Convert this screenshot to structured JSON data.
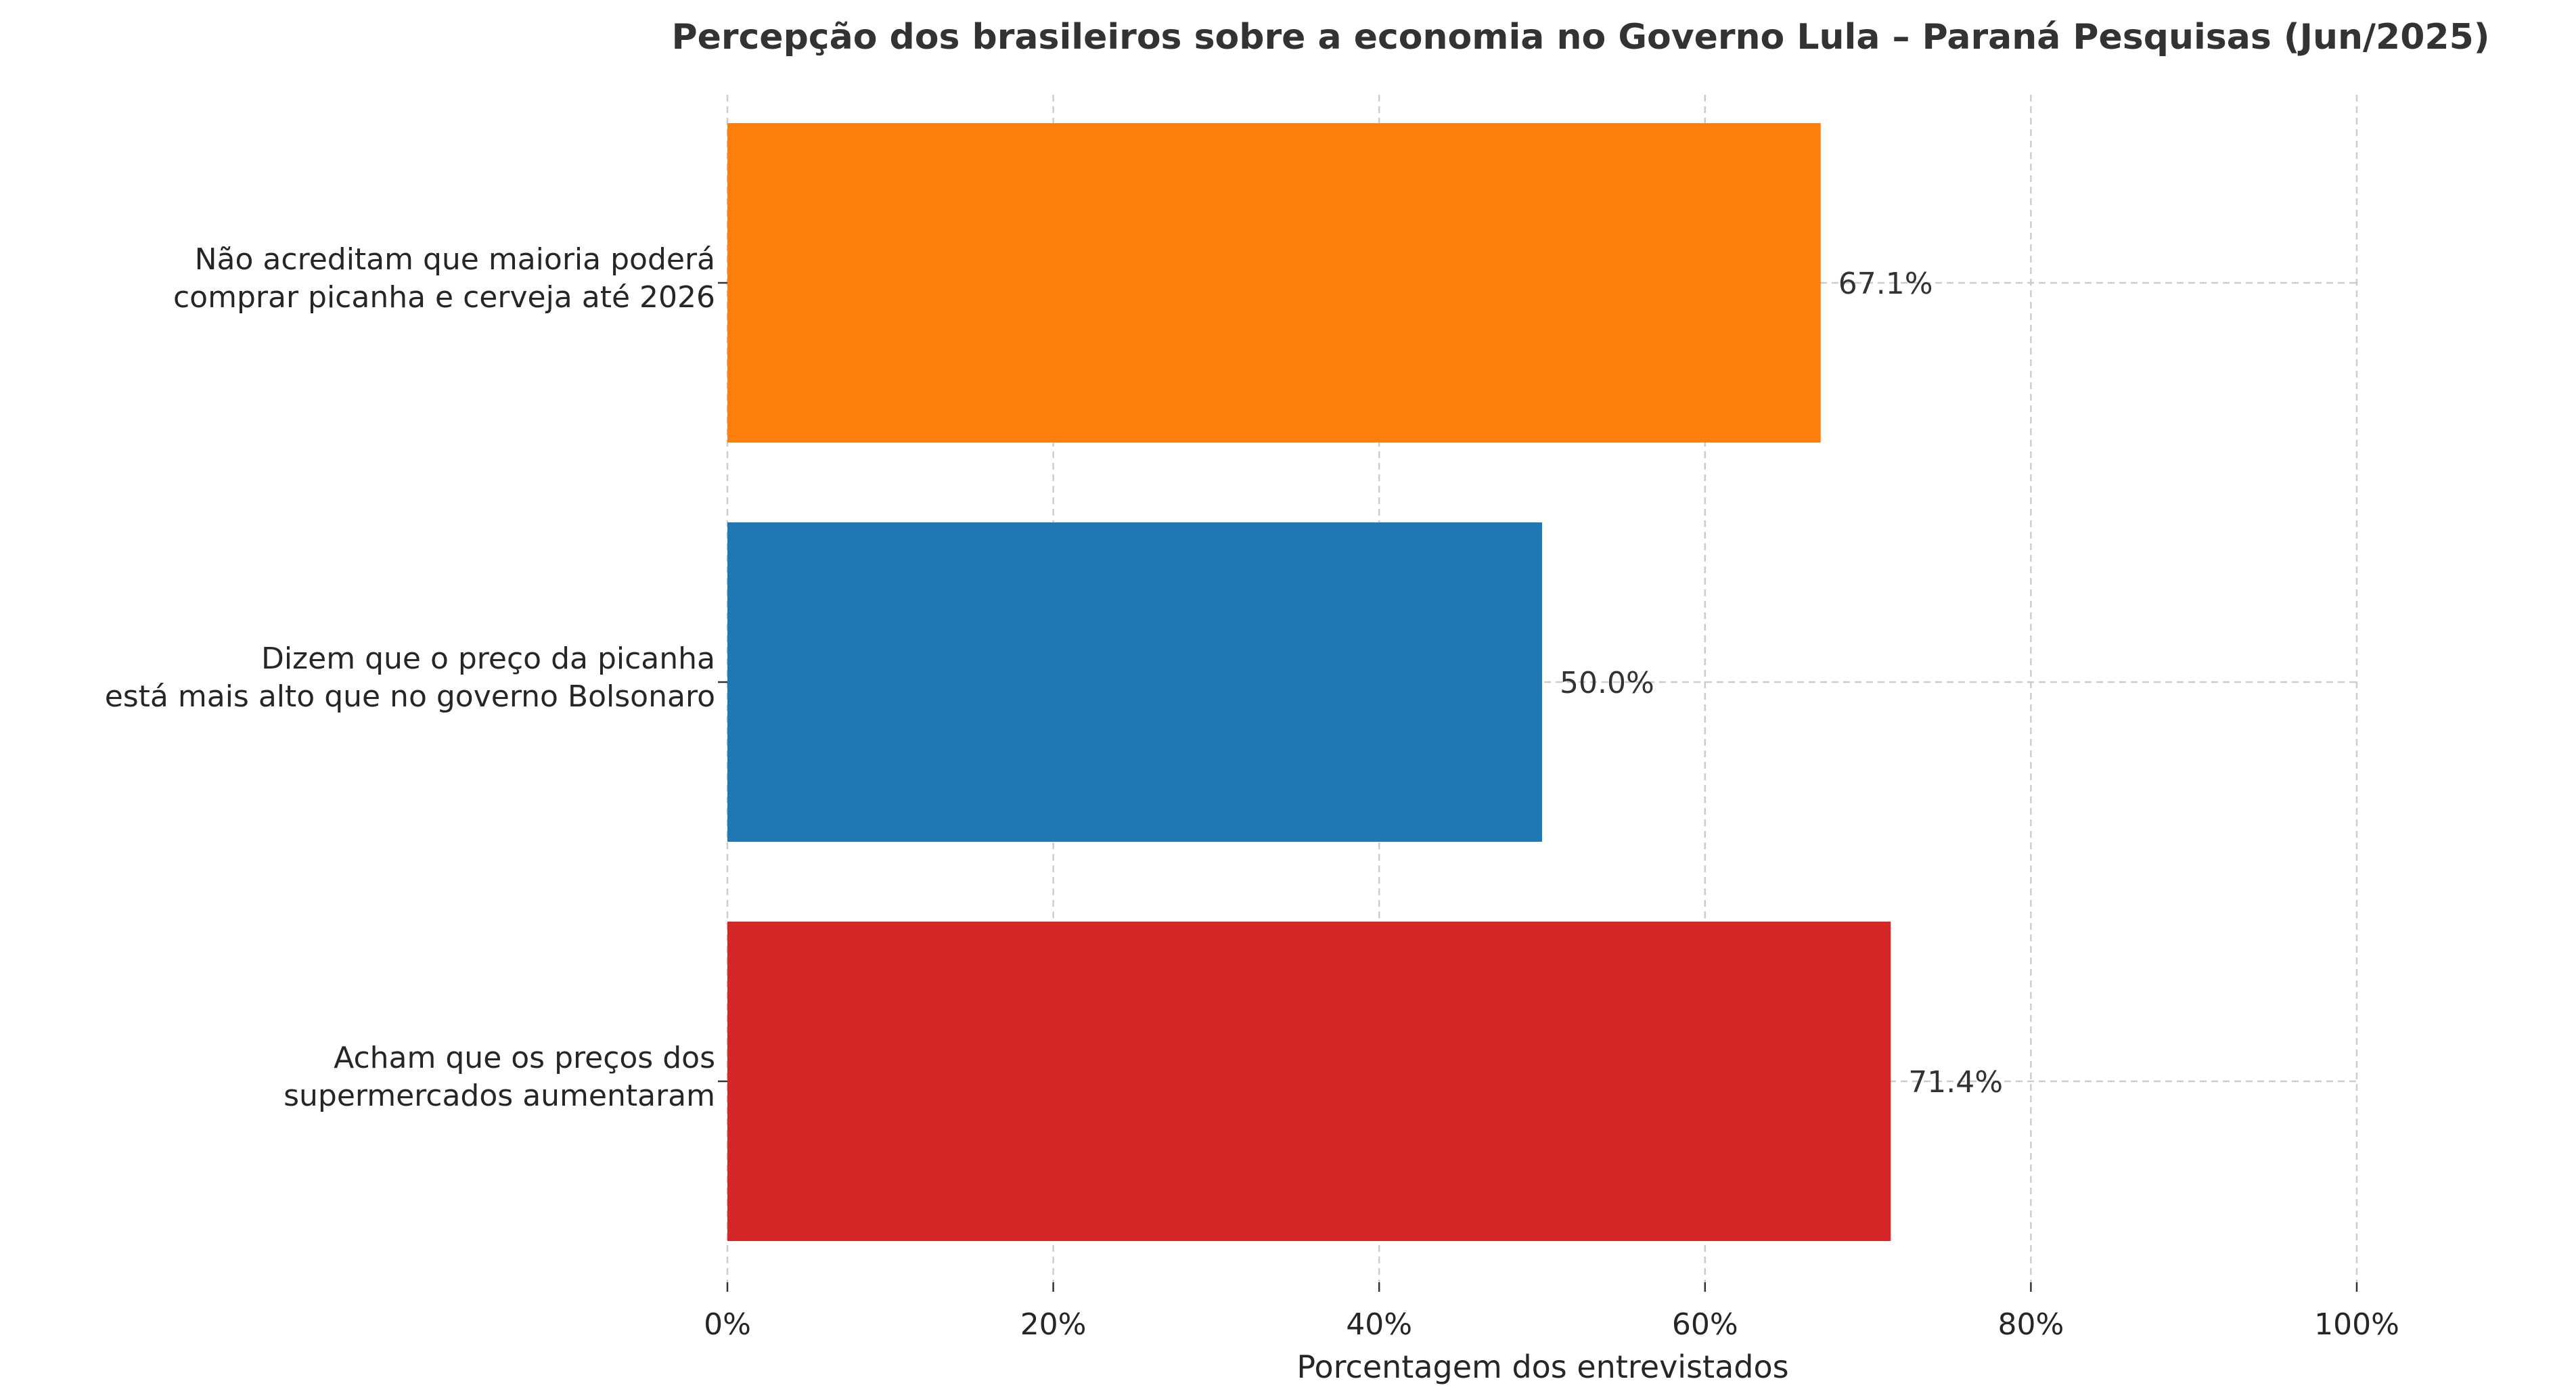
{
  "chart_data": {
    "type": "bar",
    "orientation": "horizontal",
    "title": "Percepção dos brasileiros sobre a economia no Governo Lula – Paraná Pesquisas (Jun/2025)",
    "xlabel": "Porcentagem dos entrevistados",
    "ylabel": "",
    "xlim": [
      0,
      100
    ],
    "xticks": [
      0,
      20,
      40,
      60,
      80,
      100
    ],
    "xtick_labels": [
      "0%",
      "20%",
      "40%",
      "60%",
      "80%",
      "100%"
    ],
    "grid": true,
    "categories": [
      [
        "Não acreditam que maioria poderá",
        "comprar picanha e cerveja até 2026"
      ],
      [
        "Dizem que o preço da picanha",
        "está mais alto que no governo Bolsonaro"
      ],
      [
        "Acham que os preços dos",
        "supermercados aumentaram"
      ]
    ],
    "values": [
      67.1,
      50.0,
      71.4
    ],
    "value_labels": [
      "67.1%",
      "50.0%",
      "71.4%"
    ],
    "colors": [
      "#ff7f0e",
      "#1f77b4",
      "#d62728"
    ]
  }
}
